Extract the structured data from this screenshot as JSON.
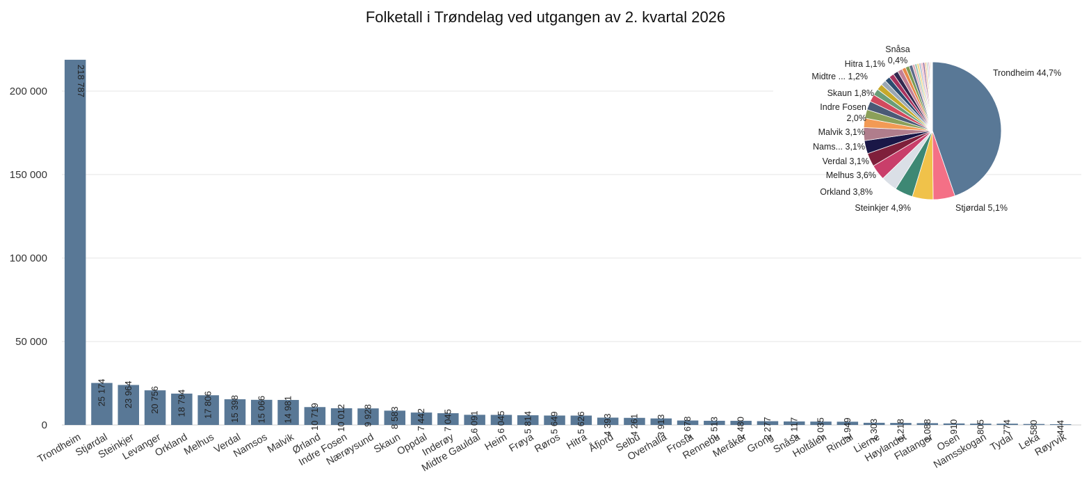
{
  "chart_data": [
    {
      "type": "bar",
      "title": "Folketall i Trøndelag ved utgangen av 2. kvartal 2026",
      "xlabel": "",
      "ylabel": "",
      "ylim": [
        0,
        220000
      ],
      "yticks": [
        {
          "value": 0,
          "label": "0"
        },
        {
          "value": 50000,
          "label": "50 000"
        },
        {
          "value": 100000,
          "label": "100 000"
        },
        {
          "value": 150000,
          "label": "150 000"
        },
        {
          "value": 200000,
          "label": "200 000"
        }
      ],
      "grid": true,
      "color": "#597896",
      "categories": [
        "Trondheim",
        "Stjørdal",
        "Steinkjer",
        "Levanger",
        "Orkland",
        "Melhus",
        "Verdal",
        "Namsos",
        "Malvik",
        "Ørland",
        "Indre Fosen",
        "Nærøysund",
        "Skaun",
        "Oppdal",
        "Inderøy",
        "Midtre Gauldal",
        "Heim",
        "Frøya",
        "Røros",
        "Hitra",
        "Åfjord",
        "Selbu",
        "Overhalla",
        "Frosta",
        "Rennebu",
        "Meråker",
        "Grong",
        "Snåsa",
        "Holtålen",
        "Rindal",
        "Lierne",
        "Høylandet",
        "Flatanger",
        "Osen",
        "Namsskogan",
        "Tydal",
        "Leka",
        "Røyrvik"
      ],
      "values": [
        218787,
        25174,
        23964,
        20756,
        18794,
        17806,
        15398,
        15066,
        14981,
        10719,
        10012,
        9928,
        8583,
        7442,
        7045,
        6091,
        6045,
        5814,
        5649,
        5626,
        4393,
        4261,
        3913,
        2678,
        2513,
        2480,
        2277,
        2117,
        2035,
        1949,
        1303,
        1218,
        1088,
        910,
        805,
        774,
        580,
        444
      ],
      "value_labels": [
        "218 787",
        "25 174",
        "23 964",
        "20 756",
        "18 794",
        "17 806",
        "15 398",
        "15 066",
        "14 981",
        "10 719",
        "10 012",
        "9 928",
        "8 583",
        "7 442",
        "7 045",
        "6 091",
        "6 045",
        "5 814",
        "5 649",
        "5 626",
        "4 393",
        "4 261",
        "3 913",
        "2 678",
        "2 513",
        "2 480",
        "2 277",
        "2 117",
        "2 035",
        "1 949",
        "1 303",
        "1 218",
        "1 088",
        "910",
        "805",
        "774",
        "580",
        "444"
      ]
    },
    {
      "type": "pie",
      "slices": [
        {
          "name": "Trondheim",
          "value": 218787,
          "color": "#597896",
          "label": "Trondheim 44,7%"
        },
        {
          "name": "Stjørdal",
          "value": 25174,
          "color": "#f47086",
          "label": "Stjørdal 5,1%"
        },
        {
          "name": "Steinkjer",
          "value": 23964,
          "color": "#f0c24a",
          "label": "Steinkjer 4,9%"
        },
        {
          "name": "Levanger",
          "value": 20756,
          "color": "#3d8874",
          "label": ""
        },
        {
          "name": "Orkland",
          "value": 18794,
          "color": "#dadfe6",
          "label": "Orkland 3,8%"
        },
        {
          "name": "Melhus",
          "value": 17806,
          "color": "#c93e6a",
          "label": "Melhus 3,6%"
        },
        {
          "name": "Verdal",
          "value": 15398,
          "color": "#7f1f3b",
          "label": "Verdal 3,1%"
        },
        {
          "name": "Namsos",
          "value": 15066,
          "color": "#1a1747",
          "label": "Nams... 3,1%"
        },
        {
          "name": "Malvik",
          "value": 14981,
          "color": "#b07d8c",
          "label": "Malvik 3,1%"
        },
        {
          "name": "Ørland",
          "value": 10719,
          "color": "#f29a55",
          "label": ""
        },
        {
          "name": "Indre Fosen",
          "value": 10012,
          "color": "#8ba05a",
          "label": "Indre Fosen\n2,0%"
        },
        {
          "name": "Nærøysund",
          "value": 9928,
          "color": "#4a5a76",
          "label": ""
        },
        {
          "name": "Skaun",
          "value": 8583,
          "color": "#d14a5e",
          "label": "Skaun 1,8%"
        },
        {
          "name": "Oppdal",
          "value": 7442,
          "color": "#6a9d78",
          "label": ""
        },
        {
          "name": "Inderøy",
          "value": 7045,
          "color": "#c6a92b",
          "label": ""
        },
        {
          "name": "Midtre Gauldal",
          "value": 6091,
          "color": "#9aa7b4",
          "label": "Midtre ... 1,2%"
        },
        {
          "name": "Heim",
          "value": 6045,
          "color": "#2b4c6f",
          "label": ""
        },
        {
          "name": "Frøya",
          "value": 5814,
          "color": "#a8335e",
          "label": ""
        },
        {
          "name": "Røros",
          "value": 5649,
          "color": "#33284f",
          "label": ""
        },
        {
          "name": "Hitra",
          "value": 5626,
          "color": "#c47f95",
          "label": "Hitra 1,1%"
        },
        {
          "name": "Åfjord",
          "value": 4393,
          "color": "#e8894a",
          "label": ""
        },
        {
          "name": "Selbu",
          "value": 4261,
          "color": "#7c9a52",
          "label": ""
        },
        {
          "name": "Overhalla",
          "value": 3913,
          "color": "#5b6b89",
          "label": ""
        },
        {
          "name": "Frosta",
          "value": 2678,
          "color": "#e2aab5",
          "label": ""
        },
        {
          "name": "Rennebu",
          "value": 2513,
          "color": "#9fc7b5",
          "label": ""
        },
        {
          "name": "Meråker",
          "value": 2480,
          "color": "#f3d98a",
          "label": ""
        },
        {
          "name": "Grong",
          "value": 2277,
          "color": "#b6c2cf",
          "label": ""
        },
        {
          "name": "Snåsa",
          "value": 2117,
          "color": "#f7b8c4",
          "label": "Snåsa\n0,4%"
        },
        {
          "name": "Holtålen",
          "value": 2035,
          "color": "#8e6a9e",
          "label": ""
        },
        {
          "name": "Rindal",
          "value": 1949,
          "color": "#f5c9a3",
          "label": ""
        },
        {
          "name": "Lierne",
          "value": 1303,
          "color": "#c8d8a8",
          "label": ""
        },
        {
          "name": "Høylandet",
          "value": 1218,
          "color": "#a5b6d6",
          "label": ""
        },
        {
          "name": "Flatanger",
          "value": 1088,
          "color": "#e07a8f",
          "label": ""
        },
        {
          "name": "Osen",
          "value": 910,
          "color": "#d7c6e3",
          "label": ""
        },
        {
          "name": "Namsskogan",
          "value": 805,
          "color": "#f0a868",
          "label": ""
        },
        {
          "name": "Tydal",
          "value": 774,
          "color": "#bcd7cf",
          "label": ""
        },
        {
          "name": "Leka",
          "value": 580,
          "color": "#d98fb0",
          "label": ""
        },
        {
          "name": "Røyrvik",
          "value": 444,
          "color": "#9bb0c8",
          "label": ""
        }
      ]
    }
  ]
}
